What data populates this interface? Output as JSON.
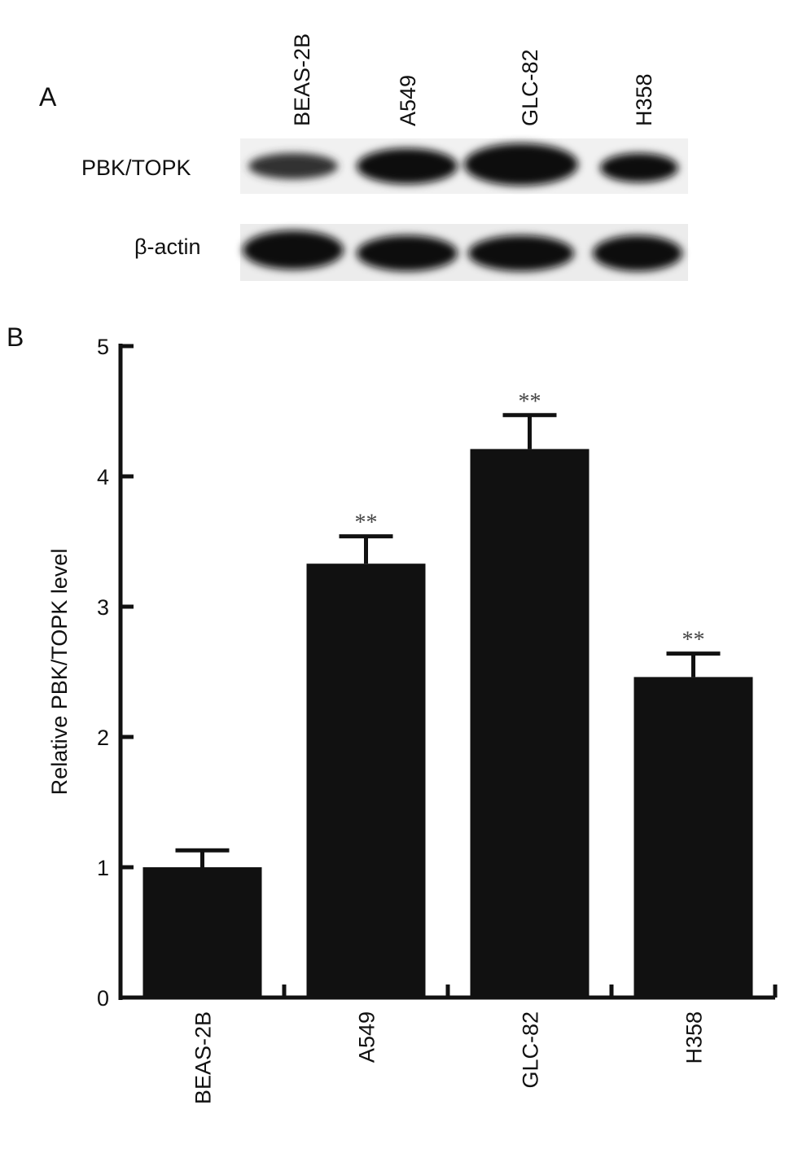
{
  "panel_a": {
    "label": "A",
    "lanes": [
      "BEAS-2B",
      "A549",
      "GLC-82",
      "H358"
    ],
    "rows": [
      "PBK/TOPK",
      "β-actin"
    ]
  },
  "chart_data": {
    "type": "bar",
    "panel_label": "B",
    "y_label": "Relative PBK/TOPK level",
    "categories": [
      "BEAS-2B",
      "A549",
      "GLC-82",
      "H358"
    ],
    "values": [
      1.0,
      3.33,
      4.21,
      2.46
    ],
    "errors": [
      0.13,
      0.21,
      0.26,
      0.18
    ],
    "significance": [
      null,
      "**",
      "**",
      "**"
    ],
    "color": "#111111",
    "ylim": [
      0,
      5
    ],
    "yticks": [
      0,
      1,
      2,
      3,
      4,
      5
    ]
  }
}
